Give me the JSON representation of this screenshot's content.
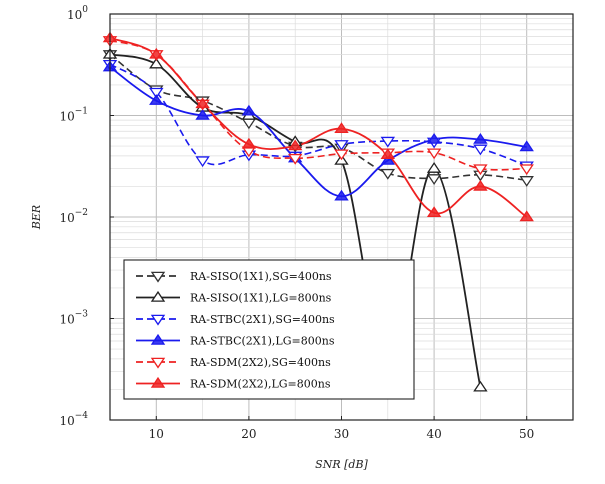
{
  "chart_data": {
    "type": "line",
    "xlabel": "SNR [dB]",
    "ylabel": "BER",
    "y_scale": "log",
    "xlim": [
      5,
      55
    ],
    "ylim": [
      0.0001,
      1
    ],
    "x_ticks": [
      "10",
      "20",
      "30",
      "40",
      "50"
    ],
    "x_tick_values": [
      10,
      20,
      30,
      40,
      50
    ],
    "y_ticks": [
      {
        "value": 1,
        "base": "10",
        "exp": "0"
      },
      {
        "value": 0.1,
        "base": "10",
        "exp": "−1"
      },
      {
        "value": 0.01,
        "base": "10",
        "exp": "−2"
      },
      {
        "value": 0.001,
        "base": "10",
        "exp": "−3"
      },
      {
        "value": 0.0001,
        "base": "10",
        "exp": "−4"
      }
    ],
    "grid": true,
    "legend_position": "bottom-left",
    "series": [
      {
        "name": "RA-SISO(1X1),SG=400ns",
        "color": "#333333",
        "dashed": true,
        "marker": "tri-down-open",
        "x": [
          5,
          10,
          15,
          20,
          25,
          30,
          35,
          40,
          45,
          50
        ],
        "y": [
          0.4,
          0.18,
          0.14,
          0.085,
          0.05,
          0.048,
          0.027,
          0.024,
          0.026,
          0.023
        ]
      },
      {
        "name": "RA-SISO(1X1),LG=800ns",
        "color": "#222222",
        "dashed": false,
        "marker": "tri-up-open",
        "x": [
          5,
          10,
          15,
          20,
          25,
          30,
          35,
          40,
          45
        ],
        "y": [
          0.4,
          0.32,
          0.12,
          0.1,
          0.055,
          0.036,
          0.00042,
          0.03,
          0.00021
        ]
      },
      {
        "name": "RA-STBC(2X1),SG=400ns",
        "color": "#1a1aee",
        "dashed": true,
        "marker": "tri-down-open",
        "x": [
          5,
          10,
          15,
          20,
          25,
          30,
          35,
          40,
          45,
          50
        ],
        "y": [
          0.32,
          0.17,
          0.036,
          0.041,
          0.04,
          0.052,
          0.056,
          0.055,
          0.047,
          0.032
        ]
      },
      {
        "name": "RA-STBC(2X1),LG=800ns",
        "color": "#1a1aee",
        "dashed": false,
        "marker": "tri-up-filled",
        "x": [
          5,
          10,
          15,
          20,
          25,
          30,
          35,
          40,
          45,
          50
        ],
        "y": [
          0.3,
          0.14,
          0.1,
          0.11,
          0.038,
          0.016,
          0.036,
          0.058,
          0.058,
          0.049
        ]
      },
      {
        "name": "RA-SDM(2X2),SG=400ns",
        "color": "#ee2222",
        "dashed": true,
        "marker": "tri-down-open",
        "x": [
          5,
          10,
          15,
          20,
          25,
          30,
          35,
          40,
          45,
          50
        ],
        "y": [
          0.55,
          0.4,
          0.13,
          0.045,
          0.038,
          0.042,
          0.043,
          0.043,
          0.03,
          0.03
        ]
      },
      {
        "name": "RA-SDM(2X2),LG=800ns",
        "color": "#ee2222",
        "dashed": false,
        "marker": "tri-up-filled",
        "x": [
          5,
          10,
          15,
          20,
          25,
          30,
          35,
          40,
          45,
          50
        ],
        "y": [
          0.58,
          0.4,
          0.13,
          0.052,
          0.05,
          0.074,
          0.041,
          0.011,
          0.02,
          0.01
        ]
      }
    ]
  }
}
